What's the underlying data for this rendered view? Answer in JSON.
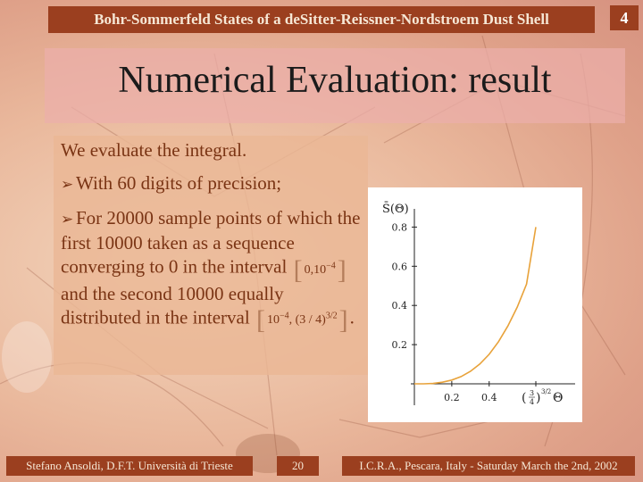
{
  "header": {
    "title": "Bohr-Sommerfeld States of a deSitter-Reissner-Nordstroem Dust Shell",
    "page_badge": "4"
  },
  "slide": {
    "title": "Numerical Evaluation: result",
    "intro": "We evaluate the integral.",
    "bullets": [
      {
        "text": "With 60 digits of precision;"
      },
      {
        "text_a": "For 20000 sample points of which the first 10000 taken as a sequence converging to 0 in the interval",
        "interval1": {
          "lo": "0,10",
          "exp": "−4"
        },
        "text_b": "and the second 10000 equally distributed in the interval",
        "interval2": {
          "lo": "10",
          "lo_exp": "−4",
          "mid": ", (3 / 4)",
          "mid_exp": "3/2"
        },
        "text_c": "."
      }
    ]
  },
  "chart_data": {
    "type": "line",
    "ylabel": "S̄(Θ)",
    "xlabel": "Θ",
    "x_axis_end_label": "(3/4)^(3/2)",
    "x_ticks": [
      "0.2",
      "0.4"
    ],
    "y_ticks": [
      "0.2",
      "0.4",
      "0.6",
      "0.8"
    ],
    "xlim": [
      0,
      0.6495
    ],
    "ylim": [
      0,
      0.82
    ],
    "series": [
      {
        "color": "#e8a23a",
        "x": [
          0.0,
          0.05,
          0.1,
          0.15,
          0.2,
          0.25,
          0.3,
          0.35,
          0.4,
          0.45,
          0.5,
          0.55,
          0.6,
          0.6495
        ],
        "values": [
          0.0,
          0.0001,
          0.002,
          0.008,
          0.019,
          0.037,
          0.064,
          0.101,
          0.151,
          0.215,
          0.295,
          0.392,
          0.509,
          0.8
        ]
      }
    ]
  },
  "footer": {
    "left": "Stefano Ansoldi, D.F.T. Università di Trieste",
    "page": "20",
    "right": "I.C.R.A., Pescara, Italy - Saturday March the 2nd, 2002"
  }
}
